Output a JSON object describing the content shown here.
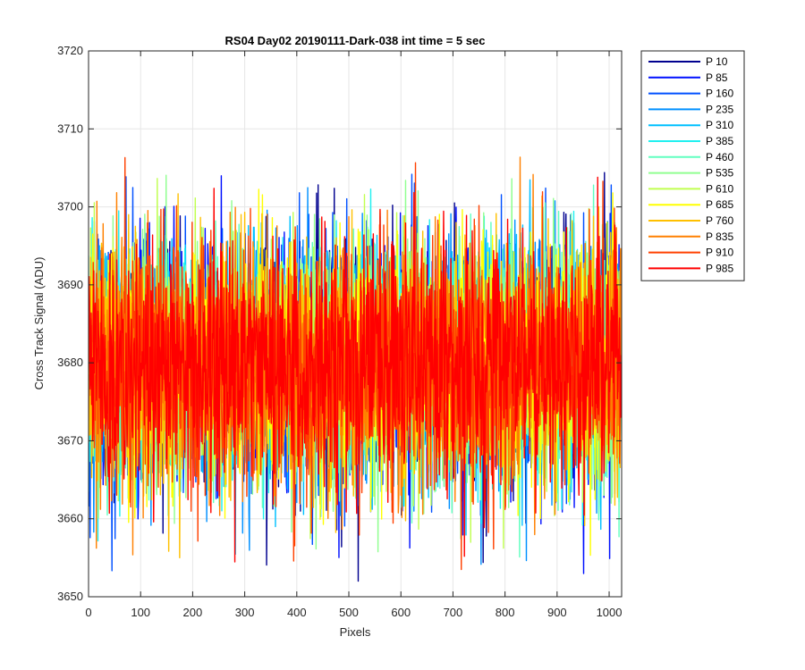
{
  "chart_data": {
    "type": "line",
    "title": "RS04 Day02 20190111-Dark-038 int time = 5 sec",
    "xlabel": "Pixels",
    "ylabel": "Cross Track Signal (ADU)",
    "xlim": [
      0,
      1024
    ],
    "ylim": [
      3650,
      3720
    ],
    "xticks": [
      0,
      100,
      200,
      300,
      400,
      500,
      600,
      700,
      800,
      900,
      1000
    ],
    "yticks": [
      3650,
      3660,
      3670,
      3680,
      3690,
      3700,
      3710,
      3720
    ],
    "grid": true,
    "legend_position": "outside-top-right",
    "signal_summary": {
      "n_pixels": 1024,
      "mean": 3680,
      "typical_range": [
        3663,
        3697
      ],
      "extremes_observed": [
        3652,
        3712
      ]
    },
    "series": [
      {
        "name": "P 10",
        "color": "#00008f"
      },
      {
        "name": "P 85",
        "color": "#0010ff"
      },
      {
        "name": "P 160",
        "color": "#0050ff"
      },
      {
        "name": "P 235",
        "color": "#0090ff"
      },
      {
        "name": "P 310",
        "color": "#00c0ff"
      },
      {
        "name": "P 385",
        "color": "#20f0f0"
      },
      {
        "name": "P 460",
        "color": "#60ffc0"
      },
      {
        "name": "P 535",
        "color": "#90ff90"
      },
      {
        "name": "P 610",
        "color": "#c0ff50"
      },
      {
        "name": "P 685",
        "color": "#ffff00"
      },
      {
        "name": "P 760",
        "color": "#ffc000"
      },
      {
        "name": "P 835",
        "color": "#ff8000"
      },
      {
        "name": "P 910",
        "color": "#ff4000"
      },
      {
        "name": "P 985",
        "color": "#ff0000"
      }
    ]
  }
}
